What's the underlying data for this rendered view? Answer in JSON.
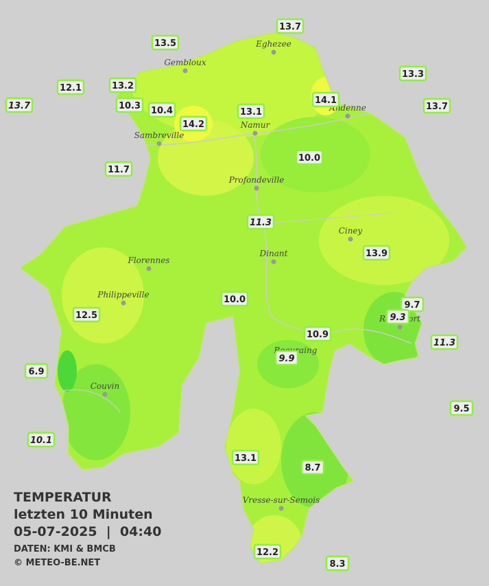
{
  "stations": [
    {
      "label": "13.7",
      "italic": false
    },
    {
      "label": "13.5",
      "italic": false
    },
    {
      "label": "12.1",
      "italic": false
    },
    {
      "label": "13.2",
      "italic": false
    },
    {
      "label": "13.7",
      "italic": true
    },
    {
      "label": "10.3",
      "italic": false
    },
    {
      "label": "10.4",
      "italic": false
    },
    {
      "label": "14.2",
      "italic": false
    },
    {
      "label": "13.1",
      "italic": false
    },
    {
      "label": "14.1",
      "italic": false
    },
    {
      "label": "13.3",
      "italic": false
    },
    {
      "label": "13.7",
      "italic": false
    },
    {
      "label": "10.0",
      "italic": false
    },
    {
      "label": "11.7",
      "italic": false
    },
    {
      "label": "11.3",
      "italic": true
    },
    {
      "label": "13.9",
      "italic": false
    },
    {
      "label": "10.0",
      "italic": false
    },
    {
      "label": "12.5",
      "italic": false
    },
    {
      "label": "9.7",
      "italic": false
    },
    {
      "label": "9.3",
      "italic": true
    },
    {
      "label": "11.3",
      "italic": true
    },
    {
      "label": "10.9",
      "italic": false
    },
    {
      "label": "9.9",
      "italic": true
    },
    {
      "label": "6.9",
      "italic": false
    },
    {
      "label": "9.5",
      "italic": false
    },
    {
      "label": "10.1",
      "italic": true
    },
    {
      "label": "13.1",
      "italic": false
    },
    {
      "label": "8.7",
      "italic": false
    },
    {
      "label": "12.2",
      "italic": false
    },
    {
      "label": "8.3",
      "italic": false
    }
  ],
  "towns": [
    "Eghezee",
    "Gembloux",
    "Andenne",
    "Namur",
    "Sambreville",
    "Profondeville",
    "Ciney",
    "Dinant",
    "Florennes",
    "Philippeville",
    "Beauraing",
    "Rochefort",
    "Couvin",
    "Vresse-sur-Semois"
  ],
  "legend": {
    "title": "TEMPERATUR",
    "subtitle": "letzten 10 Minuten",
    "timestamp": "05-07-2025  |  04:40",
    "source": "DATEN: KMI & BMCB",
    "copyright": "© METEO-BE.NET"
  }
}
